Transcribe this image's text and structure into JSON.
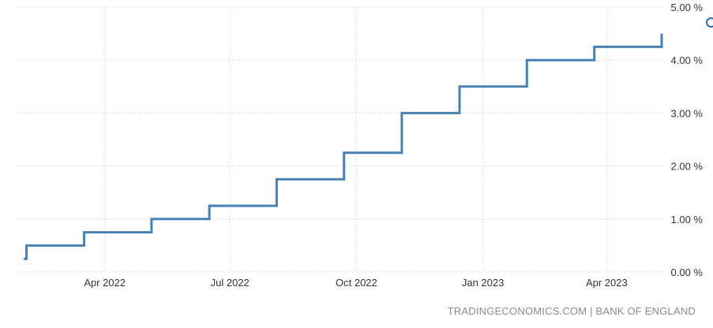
{
  "chart_data": {
    "type": "line",
    "step": true,
    "series": [
      {
        "color": "#4682B4",
        "points": [
          {
            "x": "2022-02-01",
            "y": 0.25
          },
          {
            "x": "2022-02-03",
            "y": 0.5
          },
          {
            "x": "2022-03-17",
            "y": 0.75
          },
          {
            "x": "2022-05-05",
            "y": 1.0
          },
          {
            "x": "2022-06-16",
            "y": 1.25
          },
          {
            "x": "2022-08-04",
            "y": 1.75
          },
          {
            "x": "2022-09-22",
            "y": 2.25
          },
          {
            "x": "2022-11-03",
            "y": 3.0
          },
          {
            "x": "2022-12-15",
            "y": 3.5
          },
          {
            "x": "2023-02-02",
            "y": 4.0
          },
          {
            "x": "2023-03-23",
            "y": 4.25
          },
          {
            "x": "2023-05-11",
            "y": 4.5
          }
        ]
      }
    ],
    "x_ticks": [
      "Apr 2022",
      "Jul 2022",
      "Oct 2022",
      "Jan 2023",
      "Apr 2023"
    ],
    "y_ticks": [
      "0.00 %",
      "1.00 %",
      "2.00 %",
      "3.00 %",
      "4.00 %",
      "5.00 %"
    ],
    "ylim": [
      0,
      5
    ],
    "grid": true,
    "title": "",
    "xlabel": "",
    "ylabel": ""
  },
  "source_text": "TRADINGECONOMICS.COM | BANK OF ENGLAND"
}
